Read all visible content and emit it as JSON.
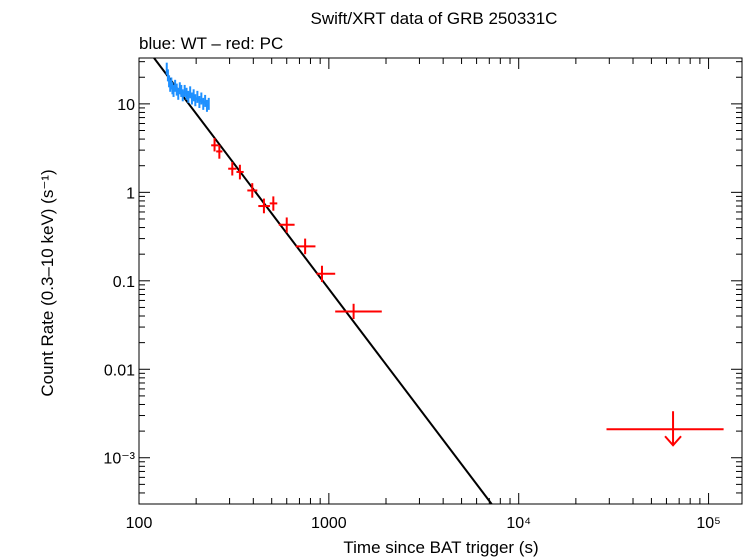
{
  "chart_data": {
    "type": "scatter",
    "title": "Swift/XRT data of GRB 250331C",
    "subtitle": "blue: WT – red: PC",
    "xlabel": "Time since BAT trigger (s)",
    "ylabel": "Count Rate (0.3–10 keV) (s⁻¹)",
    "xscale": "log",
    "yscale": "log",
    "xlim": [
      100,
      150000
    ],
    "ylim": [
      0.0003,
      33
    ],
    "x_ticks": [
      {
        "value": 100,
        "label": "100"
      },
      {
        "value": 1000,
        "label": "1000"
      },
      {
        "value": 10000,
        "label": "10⁴"
      },
      {
        "value": 100000,
        "label": "10⁵"
      }
    ],
    "y_ticks": [
      {
        "value": 10,
        "label": "10"
      },
      {
        "value": 1,
        "label": "1"
      },
      {
        "value": 0.1,
        "label": "0.1"
      },
      {
        "value": 0.01,
        "label": "0.01"
      },
      {
        "value": 0.001,
        "label": "10⁻³"
      }
    ],
    "series": [
      {
        "mode": "WT",
        "color": "#1e90ff",
        "points": [
          {
            "x": 140,
            "y": 25
          },
          {
            "x": 142,
            "y": 21
          },
          {
            "x": 144,
            "y": 18
          },
          {
            "x": 146,
            "y": 16
          },
          {
            "x": 148,
            "y": 17
          },
          {
            "x": 150,
            "y": 15
          },
          {
            "x": 152,
            "y": 14
          },
          {
            "x": 155,
            "y": 16
          },
          {
            "x": 158,
            "y": 14.5
          },
          {
            "x": 161,
            "y": 13
          },
          {
            "x": 164,
            "y": 15
          },
          {
            "x": 167,
            "y": 14
          },
          {
            "x": 170,
            "y": 12.5
          },
          {
            "x": 174,
            "y": 14
          },
          {
            "x": 178,
            "y": 13
          },
          {
            "x": 182,
            "y": 12
          },
          {
            "x": 186,
            "y": 13.5
          },
          {
            "x": 190,
            "y": 11.5
          },
          {
            "x": 194,
            "y": 12.5
          },
          {
            "x": 198,
            "y": 11
          },
          {
            "x": 203,
            "y": 12
          },
          {
            "x": 208,
            "y": 10.5
          },
          {
            "x": 213,
            "y": 11.5
          },
          {
            "x": 218,
            "y": 10
          },
          {
            "x": 223,
            "y": 10.8
          },
          {
            "x": 228,
            "y": 9.5
          },
          {
            "x": 233,
            "y": 10
          }
        ]
      },
      {
        "mode": "PC",
        "color": "#ff0000",
        "points": [
          {
            "x": 250,
            "y": 3.4,
            "x_lo": 240,
            "x_hi": 262,
            "y_lo": 2.9,
            "y_hi": 4.1
          },
          {
            "x": 265,
            "y": 2.9,
            "x_lo": 255,
            "x_hi": 275,
            "y_lo": 2.4,
            "y_hi": 3.4
          },
          {
            "x": 310,
            "y": 1.85,
            "x_lo": 295,
            "x_hi": 326,
            "y_lo": 1.55,
            "y_hi": 2.2
          },
          {
            "x": 340,
            "y": 1.7,
            "x_lo": 326,
            "x_hi": 356,
            "y_lo": 1.4,
            "y_hi": 2.05
          },
          {
            "x": 395,
            "y": 1.05,
            "x_lo": 372,
            "x_hi": 420,
            "y_lo": 0.87,
            "y_hi": 1.27
          },
          {
            "x": 455,
            "y": 0.7,
            "x_lo": 425,
            "x_hi": 490,
            "y_lo": 0.58,
            "y_hi": 0.85
          },
          {
            "x": 510,
            "y": 0.75,
            "x_lo": 488,
            "x_hi": 535,
            "y_lo": 0.62,
            "y_hi": 0.9
          },
          {
            "x": 600,
            "y": 0.43,
            "x_lo": 545,
            "x_hi": 660,
            "y_lo": 0.35,
            "y_hi": 0.52
          },
          {
            "x": 750,
            "y": 0.245,
            "x_lo": 670,
            "x_hi": 850,
            "y_lo": 0.2,
            "y_hi": 0.3
          },
          {
            "x": 920,
            "y": 0.12,
            "x_lo": 860,
            "x_hi": 1080,
            "y_lo": 0.097,
            "y_hi": 0.148
          },
          {
            "x": 1350,
            "y": 0.045,
            "x_lo": 1080,
            "x_hi": 1900,
            "y_lo": 0.037,
            "y_hi": 0.055
          },
          {
            "x": 65000,
            "y": 0.0021,
            "x_lo": 29000,
            "x_hi": 120000,
            "upper_limit": true
          }
        ]
      }
    ],
    "fit_line": {
      "color": "#000000",
      "points": [
        {
          "x": 120,
          "y": 33
        },
        {
          "x": 7200,
          "y": 0.0003
        }
      ]
    }
  }
}
